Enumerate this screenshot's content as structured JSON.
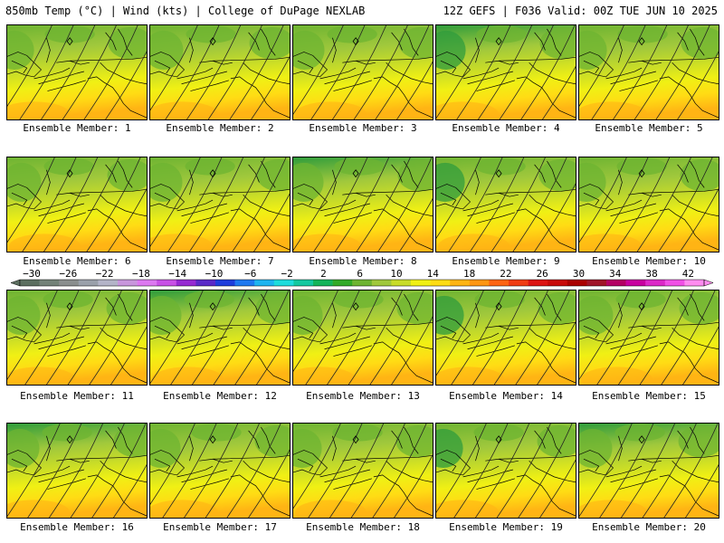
{
  "header": {
    "left": "850mb Temp (°C) | Wind (kts) | College of DuPage NEXLAB",
    "right": "12Z GEFS | F036 Valid: 00Z TUE JUN 10 2025"
  },
  "panel_label_prefix": "Ensemble Member: ",
  "members": [
    {
      "label": "Ensemble Member: 1"
    },
    {
      "label": "Ensemble Member: 2"
    },
    {
      "label": "Ensemble Member: 3"
    },
    {
      "label": "Ensemble Member: 4"
    },
    {
      "label": "Ensemble Member: 5"
    },
    {
      "label": "Ensemble Member: 6"
    },
    {
      "label": "Ensemble Member: 7"
    },
    {
      "label": "Ensemble Member: 8"
    },
    {
      "label": "Ensemble Member: 9"
    },
    {
      "label": "Ensemble Member: 10"
    },
    {
      "label": "Ensemble Member: 11"
    },
    {
      "label": "Ensemble Member: 12"
    },
    {
      "label": "Ensemble Member: 13"
    },
    {
      "label": "Ensemble Member: 14"
    },
    {
      "label": "Ensemble Member: 15"
    },
    {
      "label": "Ensemble Member: 16"
    },
    {
      "label": "Ensemble Member: 17"
    },
    {
      "label": "Ensemble Member: 18"
    },
    {
      "label": "Ensemble Member: 19"
    },
    {
      "label": "Ensemble Member: 20"
    }
  ],
  "colorbar": {
    "tick_labels": [
      "−30",
      "−26",
      "−22",
      "−18",
      "−14",
      "−10",
      "−6",
      "−2",
      "2",
      "6",
      "10",
      "14",
      "18",
      "22",
      "26",
      "30",
      "34",
      "38",
      "42"
    ],
    "colors": [
      "#5c6f60",
      "#738278",
      "#8a8e8e",
      "#9aa0aa",
      "#b4b4c8",
      "#c896dc",
      "#dc78f0",
      "#c850e6",
      "#9628d2",
      "#5a28c8",
      "#1e3cdc",
      "#1e78f0",
      "#1eb4f0",
      "#1edcdc",
      "#14c8a0",
      "#14b45a",
      "#32aa28",
      "#6eb432",
      "#a0c83c",
      "#c8dc28",
      "#f0f014",
      "#ffdc14",
      "#ffb414",
      "#ff9614",
      "#ff6414",
      "#f03c14",
      "#dc1414",
      "#c80a0a",
      "#aa0000",
      "#a01428",
      "#b40064",
      "#c800a0",
      "#dc28c8",
      "#f050e6",
      "#ff8cf0"
    ]
  },
  "map_colors": {
    "green_dark": "#2f9c3c",
    "green": "#6eb432",
    "green_light": "#a0c83c",
    "yellow_green": "#c8dc28",
    "yellow": "#f0f014",
    "gold": "#ffdc14",
    "orange": "#ffb414"
  }
}
